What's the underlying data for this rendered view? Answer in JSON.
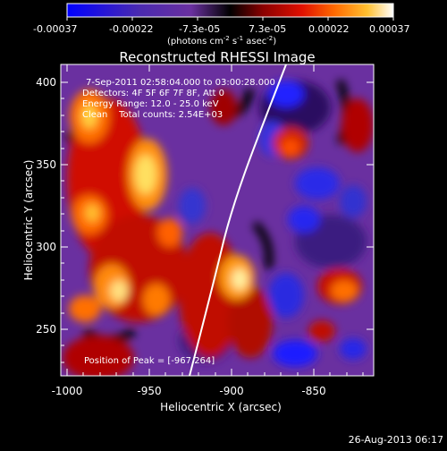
{
  "colorbar": {
    "ticks": [
      "-0.00037",
      "-0.00022",
      "-7.3e-05",
      "7.3e-05",
      "0.00022",
      "0.00037"
    ],
    "units": {
      "pre": "(photons cm",
      "exp1": "-2",
      "mid1": " s",
      "exp2": "-1",
      "mid2": " asec",
      "exp3": "-2",
      "post": ")"
    }
  },
  "plot": {
    "title": "Reconstructed RHESSI Image",
    "annotations": [
      "7-Sep-2011 02:58:04.000 to 03:00:28.000",
      "Detectors: 4F 5F 6F 7F 8F, Att 0",
      "Energy Range: 12.0 - 25.0 keV",
      "Clean    Total counts: 2.54E+03"
    ],
    "peak_label": "Position of Peak = [-967,264]",
    "xlabel": "Heliocentric X (arcsec)",
    "ylabel": "Heliocentric Y (arcsec)",
    "xticks": [
      "-1000",
      "-950",
      "-900",
      "-850"
    ],
    "yticks": [
      "400",
      "350",
      "300",
      "250"
    ]
  },
  "footer": {
    "date": "26-Aug-2013 06:17"
  },
  "colors": {
    "background": "#000000",
    "foreground": "#ffffff",
    "colormap": [
      "#0000ff",
      "#5a2aa8",
      "#7a3fb0",
      "#1a0010",
      "#7a0000",
      "#d80000",
      "#ff4a00",
      "#ff9a10",
      "#ffdd50",
      "#fffde8"
    ]
  }
}
